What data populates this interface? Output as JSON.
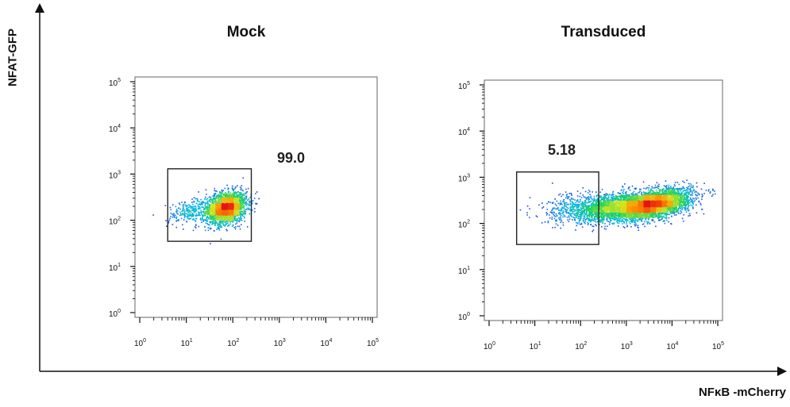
{
  "figure": {
    "y_axis_label": "NFAT-GFP",
    "x_axis_label": "NFκB -mCherry"
  },
  "chart_data": [
    {
      "type": "scatter",
      "title": "Mock",
      "xscale": "log",
      "yscale": "log",
      "xlim": [
        1,
        100000
      ],
      "ylim": [
        1,
        100000
      ],
      "x_ticks": [
        1,
        10,
        100,
        1000,
        10000,
        100000
      ],
      "y_ticks": [
        1,
        10,
        100,
        1000,
        10000,
        100000
      ],
      "tick_base": "10",
      "tick_exponents": [
        "0",
        "1",
        "2",
        "3",
        "4",
        "5"
      ],
      "gate": {
        "x_range": [
          4,
          250
        ],
        "y_range": [
          35,
          1300
        ],
        "value": "99.0"
      },
      "populations": [
        {
          "center": [
            70,
            190
          ],
          "spread_log10": [
            0.22,
            0.17
          ],
          "count": 2200
        },
        {
          "center": [
            12,
            160
          ],
          "spread_log10": [
            0.25,
            0.14
          ],
          "count": 250
        }
      ]
    },
    {
      "type": "scatter",
      "title": "Transduced",
      "xscale": "log",
      "yscale": "log",
      "xlim": [
        1,
        100000
      ],
      "ylim": [
        1,
        100000
      ],
      "x_ticks": [
        1,
        10,
        100,
        1000,
        10000,
        100000
      ],
      "y_ticks": [
        1,
        10,
        100,
        1000,
        10000,
        100000
      ],
      "tick_base": "10",
      "tick_exponents": [
        "0",
        "1",
        "2",
        "3",
        "4",
        "5"
      ],
      "gate": {
        "x_range": [
          4,
          250
        ],
        "y_range": [
          35,
          1300
        ],
        "value": "5.18"
      },
      "populations": [
        {
          "center": [
            3500,
            260
          ],
          "spread_log10": [
            0.42,
            0.14
          ],
          "count": 4200
        },
        {
          "center": [
            400,
            230
          ],
          "spread_log10": [
            0.38,
            0.14
          ],
          "count": 1400
        },
        {
          "center": [
            60,
            220
          ],
          "spread_log10": [
            0.35,
            0.16
          ],
          "count": 320
        }
      ]
    }
  ]
}
